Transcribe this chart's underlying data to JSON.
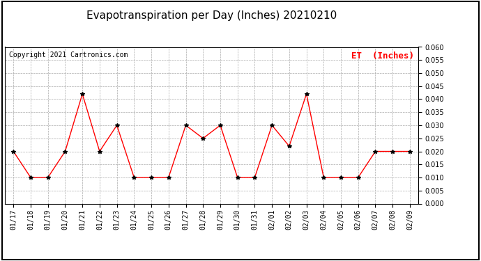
{
  "title": "Evapotranspiration per Day (Inches) 20210210",
  "copyright_text": "Copyright 2021 Cartronics.com",
  "legend_label": "ET  (Inches)",
  "dates": [
    "01/17",
    "01/18",
    "01/19",
    "01/20",
    "01/21",
    "01/22",
    "01/23",
    "01/24",
    "01/25",
    "01/26",
    "01/27",
    "01/28",
    "01/29",
    "01/30",
    "01/31",
    "02/01",
    "02/02",
    "02/03",
    "02/04",
    "02/05",
    "02/06",
    "02/07",
    "02/08",
    "02/09"
  ],
  "values": [
    0.02,
    0.01,
    0.01,
    0.02,
    0.042,
    0.02,
    0.03,
    0.01,
    0.01,
    0.01,
    0.03,
    0.025,
    0.03,
    0.01,
    0.01,
    0.03,
    0.022,
    0.042,
    0.01,
    0.01,
    0.01,
    0.02,
    0.02,
    0.02
  ],
  "line_color": "red",
  "marker_color": "black",
  "marker": "*",
  "ylim": [
    0.0,
    0.06
  ],
  "yticks": [
    0.0,
    0.005,
    0.01,
    0.015,
    0.02,
    0.025,
    0.03,
    0.035,
    0.04,
    0.045,
    0.05,
    0.055,
    0.06
  ],
  "background_color": "#ffffff",
  "grid_color": "#aaaaaa",
  "title_fontsize": 11,
  "copyright_fontsize": 7,
  "legend_fontsize": 9,
  "tick_fontsize": 7,
  "border_color": "#000000"
}
